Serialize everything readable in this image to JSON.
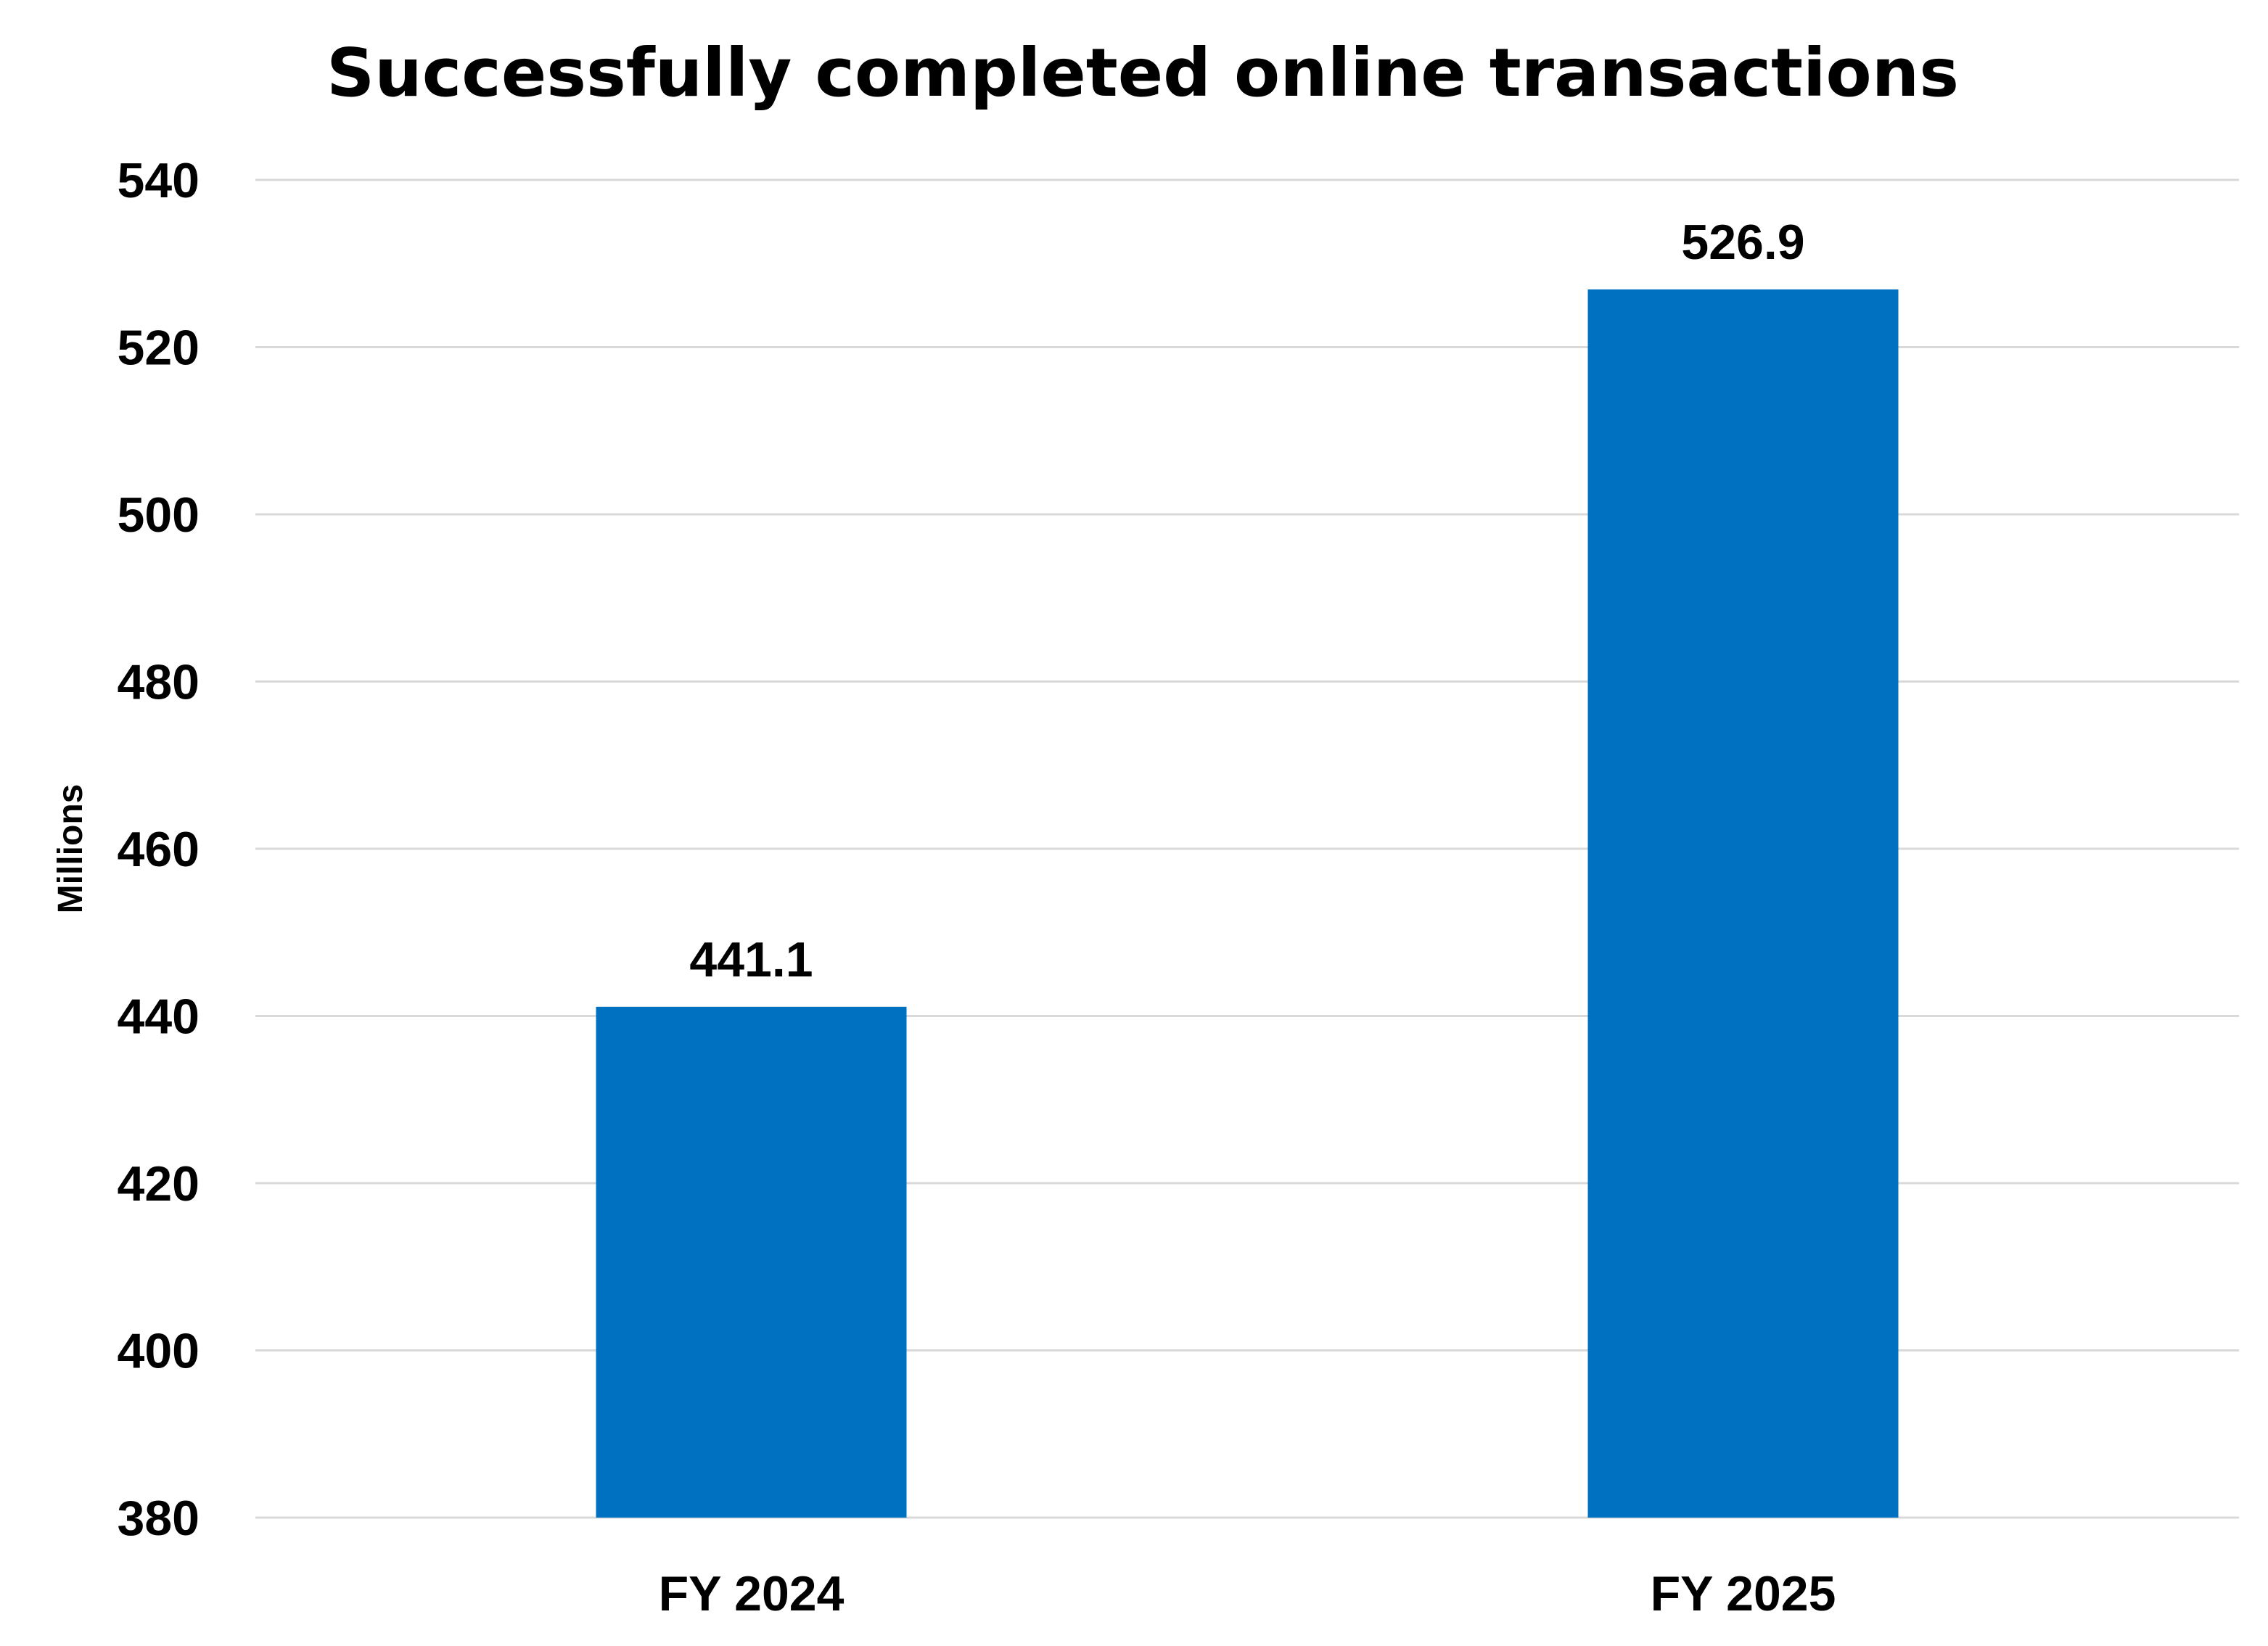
{
  "chart_data": {
    "type": "bar",
    "title": "Successfully completed online transactions",
    "xlabel": "",
    "ylabel": "Millions",
    "categories": [
      "FY 2024",
      "FY 2025"
    ],
    "series": [
      {
        "values": [
          441.1,
          526.9
        ],
        "data_labels": [
          "441.1",
          "526.9"
        ],
        "color": "#0070c0"
      }
    ],
    "ylim": [
      380,
      540
    ],
    "yticks": [
      380,
      400,
      420,
      440,
      460,
      480,
      500,
      520,
      540
    ],
    "ytick_labels": [
      "380",
      "400",
      "420",
      "440",
      "460",
      "480",
      "500",
      "520",
      "540"
    ],
    "grid": true,
    "legend": "none"
  }
}
